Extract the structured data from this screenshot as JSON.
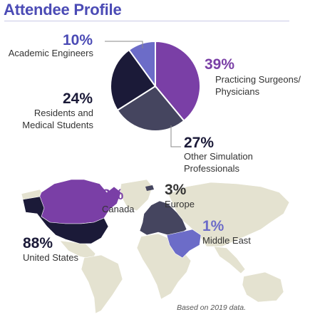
{
  "page": {
    "title": "Attendee Profile",
    "footnote": "Based on 2019 data."
  },
  "chart_data": [
    {
      "type": "pie",
      "title": "",
      "categories": [
        "Practicing Surgeons/ Physicians",
        "Other Simulation Professionals",
        "Residents and Medical Students",
        "Academic Engineers"
      ],
      "values": [
        39,
        27,
        24,
        10
      ],
      "unit": "%",
      "colors": [
        "#7a3fa6",
        "#45455f",
        "#1b1a38",
        "#6c6cc8"
      ],
      "labels": [
        {
          "pct": "39%",
          "lines": [
            "Practicing Surgeons/",
            "Physicians"
          ]
        },
        {
          "pct": "27%",
          "lines": [
            "Other Simulation",
            "Professionals"
          ]
        },
        {
          "pct": "24%",
          "lines": [
            "Residents and",
            "Medical Students"
          ]
        },
        {
          "pct": "10%",
          "lines": [
            "Academic Engineers"
          ]
        }
      ]
    },
    {
      "type": "map",
      "categories": [
        "United States",
        "Canada",
        "Europe",
        "Middle East"
      ],
      "values": [
        88,
        8,
        3,
        1
      ],
      "unit": "%",
      "labels": [
        {
          "pct": "88%",
          "name": "United States"
        },
        {
          "pct": "8%",
          "name": "Canada"
        },
        {
          "pct": "3%",
          "name": "Europe"
        },
        {
          "pct": "1%",
          "name": "Middle East"
        }
      ],
      "colors": {
        "united_states": "#1b1a38",
        "canada": "#7a3fa6",
        "europe": "#45455f",
        "middle_east": "#6c6cc8",
        "other_land": "#e4e2d0"
      }
    }
  ]
}
